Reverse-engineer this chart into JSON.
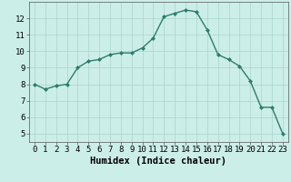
{
  "x": [
    0,
    1,
    2,
    3,
    4,
    5,
    6,
    7,
    8,
    9,
    10,
    11,
    12,
    13,
    14,
    15,
    16,
    17,
    18,
    19,
    20,
    21,
    22,
    23
  ],
  "y": [
    8.0,
    7.7,
    7.9,
    8.0,
    9.0,
    9.4,
    9.5,
    9.8,
    9.9,
    9.9,
    10.2,
    10.8,
    12.1,
    12.3,
    12.5,
    12.4,
    11.3,
    9.8,
    9.5,
    9.1,
    8.2,
    6.6,
    6.6,
    5.0
  ],
  "line_color": "#2d7d6e",
  "marker": "D",
  "marker_size": 2.0,
  "bg_color": "#cceee8",
  "grid_color": "#aad4cc",
  "xlabel": "Humidex (Indice chaleur)",
  "ylim": [
    4.5,
    13.0
  ],
  "xlim": [
    -0.5,
    23.5
  ],
  "yticks": [
    5,
    6,
    7,
    8,
    9,
    10,
    11,
    12
  ],
  "xticks": [
    0,
    1,
    2,
    3,
    4,
    5,
    6,
    7,
    8,
    9,
    10,
    11,
    12,
    13,
    14,
    15,
    16,
    17,
    18,
    19,
    20,
    21,
    22,
    23
  ],
  "tick_fontsize": 6.5,
  "xlabel_fontsize": 7.5,
  "line_width": 1.0
}
